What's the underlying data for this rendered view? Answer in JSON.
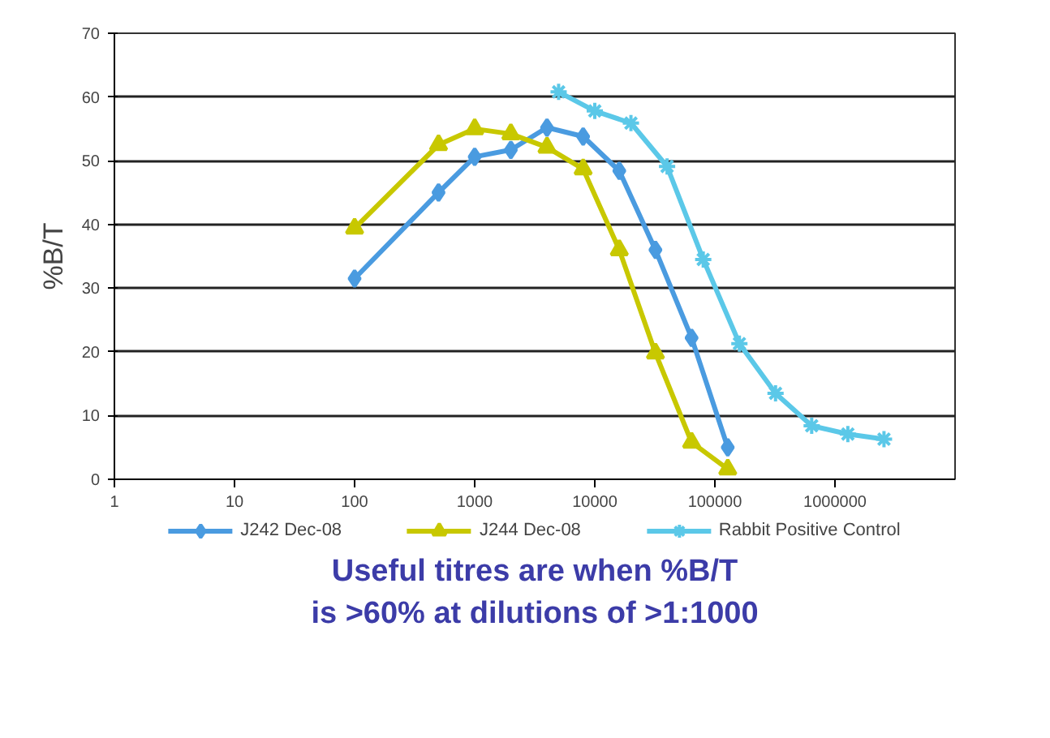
{
  "chart_data": {
    "type": "line",
    "ylabel": "%B/T",
    "x": [
      100,
      500,
      1000,
      2000,
      4000,
      8000,
      16000,
      32000,
      64000,
      128000
    ],
    "series": [
      {
        "name": "J242 Dec-08",
        "color": "#4a9be0",
        "marker": "diamond",
        "values": [
          31.5,
          45.0,
          50.6,
          51.7,
          55.2,
          53.8,
          48.4,
          36.0,
          22.2,
          5.0
        ]
      },
      {
        "name": "J244 Dec-08",
        "color": "#c8c800",
        "marker": "triangle",
        "values": [
          39.4,
          52.5,
          55.0,
          54.2,
          52.1,
          48.7,
          36.0,
          19.8,
          5.8,
          1.6
        ]
      },
      {
        "name": "Rabbit Positive Control",
        "color": "#5bc8e8",
        "marker": "cross",
        "x": [
          5000,
          10000,
          20000,
          40000,
          80000,
          160000,
          320000,
          640000,
          1280000,
          2560000
        ],
        "values": [
          60.8,
          57.8,
          55.9,
          49.1,
          34.5,
          21.3,
          13.5,
          8.4,
          7.1,
          6.3
        ]
      }
    ],
    "log": "x",
    "xlim": [
      1,
      10000000
    ],
    "xticks": [
      1,
      10,
      100,
      1000,
      10000,
      100000,
      1000000
    ],
    "ylim": [
      0,
      70
    ],
    "yticks": [
      0,
      10,
      20,
      30,
      40,
      50,
      60,
      70
    ],
    "grid": "y",
    "legend": "bottom",
    "annotations": [
      "Useful titres are when %B/T",
      "is >60% at dilutions of >1:1000"
    ]
  }
}
